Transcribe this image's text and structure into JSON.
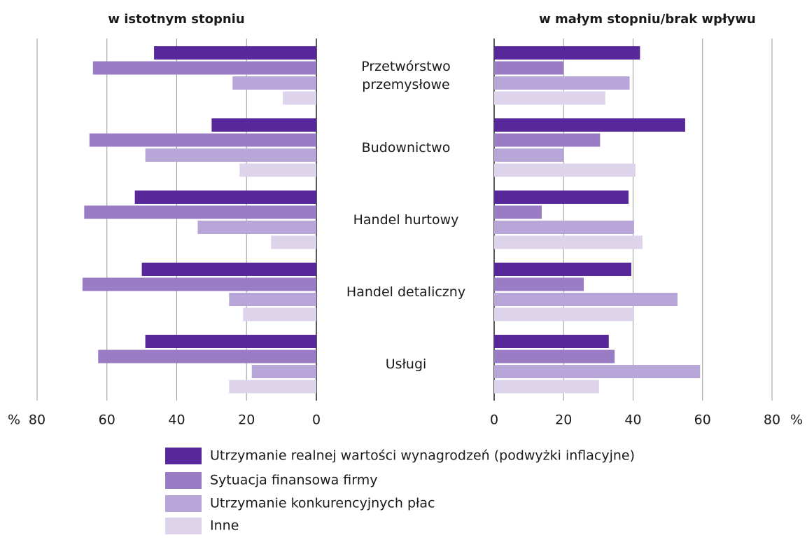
{
  "chart_data": {
    "type": "bar",
    "orientation": "horizontal",
    "categories": [
      "Przetwórstwo\nprzemysłowe",
      "Budownictwo",
      "Handel hurtowy",
      "Handel detaliczny",
      "Usługi"
    ],
    "series": [
      {
        "name": "Utrzymanie realnej wartości wynagrodzeń (podwyżki inflacyjne)",
        "color": "#58289a"
      },
      {
        "name": "Sytuacja finansowa firmy",
        "color": "#9a7cc4"
      },
      {
        "name": "Utrzymanie konkurencyjnych płac",
        "color": "#b9a6d8"
      },
      {
        "name": "Inne",
        "color": "#ddd4ec"
      }
    ],
    "grid": true,
    "panels": [
      {
        "title": "w istotnym stopniu",
        "axis_label": "%",
        "xlim": [
          80,
          0
        ],
        "xticks": [
          80,
          60,
          40,
          20,
          0
        ],
        "values": [
          [
            46.5,
            30,
            52,
            50,
            49
          ],
          [
            64,
            65,
            66.5,
            67,
            62.5
          ],
          [
            24,
            49,
            34,
            25,
            18.5
          ],
          [
            9.6,
            22,
            13,
            21,
            25
          ]
        ]
      },
      {
        "title": "w małym stopniu/brak wpływu",
        "axis_label": "%",
        "xlim": [
          0,
          80
        ],
        "xticks": [
          0,
          20,
          40,
          60,
          80
        ],
        "values": [
          [
            42,
            55,
            38.7,
            39.5,
            33
          ],
          [
            20,
            30.5,
            13.7,
            25.8,
            34.7
          ],
          [
            39,
            20,
            40.3,
            52.8,
            59.3
          ],
          [
            32,
            40.7,
            42.7,
            40.3,
            30.2
          ]
        ]
      }
    ]
  }
}
